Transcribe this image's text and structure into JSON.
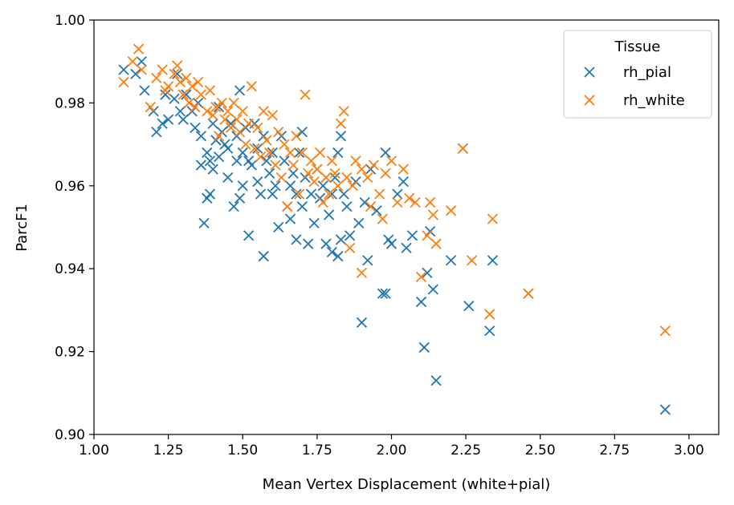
{
  "chart_data": {
    "type": "scatter",
    "xlabel": "Mean Vertex Displacement (white+pial)",
    "ylabel": "ParcF1",
    "xlim": [
      1.0,
      3.1
    ],
    "ylim": [
      0.9,
      1.0
    ],
    "xticks": [
      "1.00",
      "1.25",
      "1.50",
      "1.75",
      "2.00",
      "2.25",
      "2.50",
      "2.75",
      "3.00"
    ],
    "yticks": [
      "0.90",
      "0.92",
      "0.94",
      "0.96",
      "0.98",
      "1.00"
    ],
    "grid": false,
    "marker": "x",
    "legend": {
      "title": "Tissue",
      "position": "top-right"
    },
    "series": [
      {
        "name": "rh_pial",
        "color": "#1f77b4",
        "points": [
          [
            1.1,
            0.988
          ],
          [
            1.14,
            0.987
          ],
          [
            1.16,
            0.99
          ],
          [
            1.17,
            0.983
          ],
          [
            1.2,
            0.978
          ],
          [
            1.21,
            0.973
          ],
          [
            1.23,
            0.975
          ],
          [
            1.24,
            0.982
          ],
          [
            1.25,
            0.976
          ],
          [
            1.27,
            0.981
          ],
          [
            1.28,
            0.987
          ],
          [
            1.29,
            0.978
          ],
          [
            1.3,
            0.976
          ],
          [
            1.31,
            0.982
          ],
          [
            1.33,
            0.978
          ],
          [
            1.34,
            0.974
          ],
          [
            1.35,
            0.98
          ],
          [
            1.36,
            0.972
          ],
          [
            1.36,
            0.965
          ],
          [
            1.37,
            0.951
          ],
          [
            1.38,
            0.957
          ],
          [
            1.38,
            0.968
          ],
          [
            1.39,
            0.958
          ],
          [
            1.39,
            0.966
          ],
          [
            1.4,
            0.975
          ],
          [
            1.4,
            0.964
          ],
          [
            1.41,
            0.971
          ],
          [
            1.42,
            0.967
          ],
          [
            1.42,
            0.979
          ],
          [
            1.43,
            0.973
          ],
          [
            1.44,
            0.97
          ],
          [
            1.45,
            0.969
          ],
          [
            1.45,
            0.962
          ],
          [
            1.46,
            0.975
          ],
          [
            1.47,
            0.955
          ],
          [
            1.48,
            0.966
          ],
          [
            1.48,
            0.972
          ],
          [
            1.49,
            0.983
          ],
          [
            1.49,
            0.957
          ],
          [
            1.5,
            0.968
          ],
          [
            1.5,
            0.96
          ],
          [
            1.51,
            0.974
          ],
          [
            1.52,
            0.966
          ],
          [
            1.52,
            0.948
          ],
          [
            1.53,
            0.965
          ],
          [
            1.54,
            0.975
          ],
          [
            1.55,
            0.961
          ],
          [
            1.55,
            0.969
          ],
          [
            1.56,
            0.958
          ],
          [
            1.57,
            0.943
          ],
          [
            1.57,
            0.972
          ],
          [
            1.58,
            0.966
          ],
          [
            1.59,
            0.963
          ],
          [
            1.6,
            0.968
          ],
          [
            1.6,
            0.958
          ],
          [
            1.61,
            0.96
          ],
          [
            1.62,
            0.95
          ],
          [
            1.63,
            0.972
          ],
          [
            1.64,
            0.966
          ],
          [
            1.65,
            0.955
          ],
          [
            1.66,
            0.96
          ],
          [
            1.66,
            0.952
          ],
          [
            1.67,
            0.963
          ],
          [
            1.68,
            0.958
          ],
          [
            1.68,
            0.947
          ],
          [
            1.69,
            0.968
          ],
          [
            1.7,
            0.973
          ],
          [
            1.7,
            0.955
          ],
          [
            1.71,
            0.962
          ],
          [
            1.72,
            0.946
          ],
          [
            1.73,
            0.958
          ],
          [
            1.74,
            0.951
          ],
          [
            1.75,
            0.964
          ],
          [
            1.76,
            0.957
          ],
          [
            1.77,
            0.96
          ],
          [
            1.78,
            0.946
          ],
          [
            1.78,
            0.962
          ],
          [
            1.79,
            0.953
          ],
          [
            1.8,
            0.958
          ],
          [
            1.8,
            0.944
          ],
          [
            1.81,
            0.962
          ],
          [
            1.82,
            0.968
          ],
          [
            1.82,
            0.943
          ],
          [
            1.83,
            0.972
          ],
          [
            1.83,
            0.947
          ],
          [
            1.84,
            0.958
          ],
          [
            1.85,
            0.955
          ],
          [
            1.86,
            0.948
          ],
          [
            1.88,
            0.961
          ],
          [
            1.89,
            0.951
          ],
          [
            1.9,
            0.927
          ],
          [
            1.91,
            0.956
          ],
          [
            1.92,
            0.942
          ],
          [
            1.93,
            0.964
          ],
          [
            1.95,
            0.954
          ],
          [
            1.97,
            0.934
          ],
          [
            1.98,
            0.968
          ],
          [
            1.98,
            0.934
          ],
          [
            1.99,
            0.947
          ],
          [
            2.0,
            0.946
          ],
          [
            2.02,
            0.958
          ],
          [
            2.04,
            0.961
          ],
          [
            2.05,
            0.945
          ],
          [
            2.07,
            0.948
          ],
          [
            2.1,
            0.932
          ],
          [
            2.11,
            0.921
          ],
          [
            2.12,
            0.939
          ],
          [
            2.13,
            0.949
          ],
          [
            2.14,
            0.935
          ],
          [
            2.15,
            0.913
          ],
          [
            2.2,
            0.942
          ],
          [
            2.24,
            0.969
          ],
          [
            2.26,
            0.931
          ],
          [
            2.33,
            0.925
          ],
          [
            2.34,
            0.942
          ],
          [
            2.46,
            0.934
          ],
          [
            2.92,
            0.906
          ]
        ]
      },
      {
        "name": "rh_white",
        "color": "#ff7f0e",
        "points": [
          [
            1.1,
            0.985
          ],
          [
            1.13,
            0.99
          ],
          [
            1.15,
            0.993
          ],
          [
            1.16,
            0.988
          ],
          [
            1.19,
            0.979
          ],
          [
            1.21,
            0.986
          ],
          [
            1.23,
            0.988
          ],
          [
            1.24,
            0.983
          ],
          [
            1.25,
            0.984
          ],
          [
            1.27,
            0.987
          ],
          [
            1.28,
            0.989
          ],
          [
            1.29,
            0.985
          ],
          [
            1.3,
            0.982
          ],
          [
            1.31,
            0.986
          ],
          [
            1.32,
            0.98
          ],
          [
            1.33,
            0.984
          ],
          [
            1.34,
            0.979
          ],
          [
            1.35,
            0.985
          ],
          [
            1.36,
            0.982
          ],
          [
            1.38,
            0.978
          ],
          [
            1.39,
            0.983
          ],
          [
            1.4,
            0.977
          ],
          [
            1.41,
            0.979
          ],
          [
            1.42,
            0.972
          ],
          [
            1.43,
            0.98
          ],
          [
            1.44,
            0.976
          ],
          [
            1.45,
            0.978
          ],
          [
            1.46,
            0.974
          ],
          [
            1.47,
            0.98
          ],
          [
            1.48,
            0.976
          ],
          [
            1.49,
            0.973
          ],
          [
            1.5,
            0.978
          ],
          [
            1.51,
            0.97
          ],
          [
            1.52,
            0.975
          ],
          [
            1.53,
            0.984
          ],
          [
            1.54,
            0.969
          ],
          [
            1.55,
            0.974
          ],
          [
            1.56,
            0.967
          ],
          [
            1.57,
            0.978
          ],
          [
            1.58,
            0.971
          ],
          [
            1.59,
            0.968
          ],
          [
            1.6,
            0.977
          ],
          [
            1.61,
            0.965
          ],
          [
            1.62,
            0.973
          ],
          [
            1.63,
            0.962
          ],
          [
            1.64,
            0.97
          ],
          [
            1.65,
            0.955
          ],
          [
            1.66,
            0.968
          ],
          [
            1.67,
            0.965
          ],
          [
            1.68,
            0.972
          ],
          [
            1.69,
            0.958
          ],
          [
            1.7,
            0.968
          ],
          [
            1.71,
            0.982
          ],
          [
            1.72,
            0.963
          ],
          [
            1.73,
            0.966
          ],
          [
            1.74,
            0.961
          ],
          [
            1.75,
            0.964
          ],
          [
            1.76,
            0.968
          ],
          [
            1.77,
            0.956
          ],
          [
            1.78,
            0.962
          ],
          [
            1.79,
            0.958
          ],
          [
            1.8,
            0.966
          ],
          [
            1.81,
            0.963
          ],
          [
            1.82,
            0.96
          ],
          [
            1.83,
            0.975
          ],
          [
            1.84,
            0.978
          ],
          [
            1.85,
            0.962
          ],
          [
            1.86,
            0.945
          ],
          [
            1.87,
            0.96
          ],
          [
            1.88,
            0.966
          ],
          [
            1.9,
            0.964
          ],
          [
            1.9,
            0.939
          ],
          [
            1.92,
            0.962
          ],
          [
            1.93,
            0.955
          ],
          [
            1.94,
            0.965
          ],
          [
            1.96,
            0.958
          ],
          [
            1.97,
            0.952
          ],
          [
            1.98,
            0.963
          ],
          [
            2.0,
            0.966
          ],
          [
            2.02,
            0.956
          ],
          [
            2.04,
            0.964
          ],
          [
            2.06,
            0.957
          ],
          [
            2.08,
            0.956
          ],
          [
            2.1,
            0.938
          ],
          [
            2.12,
            0.948
          ],
          [
            2.13,
            0.956
          ],
          [
            2.14,
            0.953
          ],
          [
            2.15,
            0.946
          ],
          [
            2.2,
            0.954
          ],
          [
            2.24,
            0.969
          ],
          [
            2.27,
            0.942
          ],
          [
            2.33,
            0.929
          ],
          [
            2.34,
            0.952
          ],
          [
            2.46,
            0.934
          ],
          [
            2.92,
            0.925
          ]
        ]
      }
    ]
  }
}
